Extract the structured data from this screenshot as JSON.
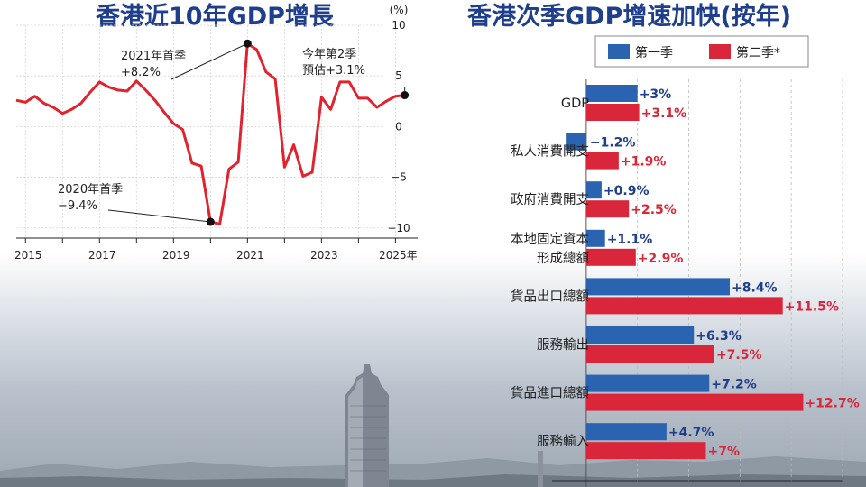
{
  "titles": {
    "left": "香港近10年GDP增長",
    "right": "香港次季GDP增速加快(按年)"
  },
  "colors": {
    "title": "#1f3f8c",
    "line": "#e0232e",
    "q1": "#2a64b0",
    "q2": "#d9263a",
    "q1_label": "#1f3f8c",
    "q2_label": "#d9263a"
  },
  "chart_data": [
    {
      "type": "line",
      "title": "香港近10年GDP增長",
      "ylabel": "(%)",
      "ylim": [
        -11,
        10
      ],
      "yticks": [
        10,
        5,
        0,
        -5,
        -10
      ],
      "ytick_labels": [
        "10",
        "5",
        "0",
        "−5",
        "−10"
      ],
      "xlim": [
        2014.75,
        2025.6
      ],
      "xticks": [
        2015,
        2017,
        2019,
        2021,
        2023,
        2025
      ],
      "xtick_labels": [
        "2015",
        "2017",
        "2019",
        "2021",
        "2023",
        "2025年"
      ],
      "grid": true,
      "series": [
        {
          "x": [
            2014.75,
            2015.0,
            2015.25,
            2015.5,
            2015.75,
            2016.0,
            2016.25,
            2016.5,
            2016.75,
            2017.0,
            2017.25,
            2017.5,
            2017.75,
            2018.0,
            2018.25,
            2018.5,
            2018.75,
            2019.0,
            2019.25,
            2019.5,
            2019.75,
            2020.0,
            2020.25,
            2020.5,
            2020.75,
            2021.0,
            2021.25,
            2021.5,
            2021.75,
            2022.0,
            2022.25,
            2022.5,
            2022.75,
            2023.0,
            2023.25,
            2023.5,
            2023.75,
            2024.0,
            2024.25,
            2024.5,
            2024.75,
            2025.0,
            2025.25
          ],
          "y": [
            2.6,
            2.4,
            3.0,
            2.3,
            1.9,
            1.3,
            1.7,
            2.3,
            3.4,
            4.4,
            3.9,
            3.6,
            3.5,
            4.5,
            3.6,
            2.6,
            1.4,
            0.3,
            -0.3,
            -3.6,
            -3.9,
            -9.4,
            -9.6,
            -4.2,
            -3.5,
            8.2,
            7.6,
            5.4,
            4.7,
            -4.0,
            -1.8,
            -4.9,
            -4.5,
            2.9,
            1.7,
            4.4,
            4.4,
            2.8,
            2.8,
            1.9,
            2.5,
            3.0,
            3.1
          ]
        }
      ],
      "annotations": [
        {
          "x": 2021.0,
          "y": 8.2,
          "lines": [
            "2021年首季",
            "+8.2%"
          ]
        },
        {
          "x": 2020.0,
          "y": -9.4,
          "lines": [
            "2020年首季",
            "−9.4%"
          ]
        },
        {
          "x": 2025.25,
          "y": 3.1,
          "lines": [
            "今年第2季",
            "預估+3.1%"
          ]
        }
      ]
    },
    {
      "type": "bar",
      "title": "香港次季GDP增速加快(按年)",
      "orientation": "horizontal",
      "xlim": [
        -2,
        15
      ],
      "xticks": [
        0,
        3,
        6,
        9,
        12,
        15
      ],
      "xtick_labels": [
        "0",
        "3",
        "6",
        "9",
        "12",
        "15%"
      ],
      "categories": [
        "GDP",
        "私人消費開支",
        "政府消費開支",
        "本地固定資本\n形成總額",
        "貨品出口總額",
        "服務輸出",
        "貨品進口總額",
        "服務輸入"
      ],
      "legend": "top-right",
      "series": [
        {
          "name": "第一季",
          "values": [
            3,
            -1.2,
            0.9,
            1.1,
            8.4,
            6.3,
            7.2,
            4.7
          ],
          "labels": [
            "+3%",
            "−1.2%",
            "+0.9%",
            "+1.1%",
            "+8.4%",
            "+6.3%",
            "+7.2%",
            "+4.7%"
          ]
        },
        {
          "name": "第二季*",
          "values": [
            3.1,
            1.9,
            2.5,
            2.9,
            11.5,
            7.5,
            12.7,
            7
          ],
          "labels": [
            "+3.1%",
            "+1.9%",
            "+2.5%",
            "+2.9%",
            "+11.5%",
            "+7.5%",
            "+12.7%",
            "+7%"
          ]
        }
      ]
    }
  ]
}
